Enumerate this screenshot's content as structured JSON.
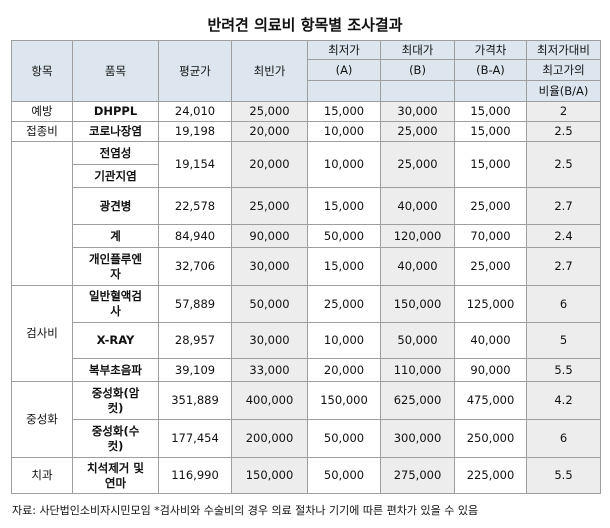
{
  "title": "반려견 의료비 항목별 조사결과",
  "headers": {
    "category": "항목",
    "item": "품목",
    "avg": "평균가",
    "mode": "최빈가",
    "min": "최저가",
    "min_sub": "(A)",
    "max": "최대가",
    "max_sub": "(B)",
    "diff": "가격차",
    "diff_sub": "(B-A)",
    "ratio1": "최저가대비",
    "ratio2": "최고가의",
    "ratio3": "비율(B/A)"
  },
  "categories": {
    "prevention": "예방",
    "vaccination": "접종비",
    "test": "검사비",
    "neutering": "중성화",
    "dental": "치과"
  },
  "rows": [
    {
      "item": "DHPPL",
      "avg": "24,010",
      "mode": "25,000",
      "min": "15,000",
      "max": "30,000",
      "diff": "15,000",
      "ratio": "2"
    },
    {
      "item": "코로나장염",
      "avg": "19,198",
      "mode": "20,000",
      "min": "10,000",
      "max": "25,000",
      "diff": "15,000",
      "ratio": "2.5"
    },
    {
      "item": "전염성 기관지염",
      "item_line1": "전염성",
      "item_line2": "기관지염",
      "avg": "19,154",
      "mode": "20,000",
      "min": "10,000",
      "max": "25,000",
      "diff": "15,000",
      "ratio": "2.5"
    },
    {
      "item": "광견병",
      "avg": "22,578",
      "mode": "25,000",
      "min": "15,000",
      "max": "40,000",
      "diff": "25,000",
      "ratio": "2.7"
    },
    {
      "item": "계",
      "avg": "84,940",
      "mode": "90,000",
      "min": "50,000",
      "max": "120,000",
      "diff": "70,000",
      "ratio": "2.4"
    },
    {
      "item": "개인플루엔자",
      "item_line1": "개인플루엔",
      "item_line2": "자",
      "avg": "32,706",
      "mode": "30,000",
      "min": "15,000",
      "max": "40,000",
      "diff": "25,000",
      "ratio": "2.7"
    },
    {
      "item": "일반혈액검사",
      "item_line1": "일반혈액검",
      "item_line2": "사",
      "avg": "57,889",
      "mode": "50,000",
      "min": "25,000",
      "max": "150,000",
      "diff": "125,000",
      "ratio": "6"
    },
    {
      "item": "X-RAY",
      "avg": "28,957",
      "mode": "30,000",
      "min": "10,000",
      "max": "50,000",
      "diff": "40,000",
      "ratio": "5"
    },
    {
      "item": "복부초음파",
      "avg": "39,109",
      "mode": "33,000",
      "min": "20,000",
      "max": "110,000",
      "diff": "90,000",
      "ratio": "5.5"
    },
    {
      "item": "중성화(암컷)",
      "item_line1": "중성화(암",
      "item_line2": "컷)",
      "avg": "351,889",
      "mode": "400,000",
      "min": "150,000",
      "max": "625,000",
      "diff": "475,000",
      "ratio": "4.2"
    },
    {
      "item": "중성화(수컷)",
      "item_line1": "중성화(수",
      "item_line2": "컷)",
      "avg": "177,454",
      "mode": "200,000",
      "min": "50,000",
      "max": "300,000",
      "diff": "250,000",
      "ratio": "6"
    },
    {
      "item": "치석제거 및 연마",
      "item_line1": "치석제거 및",
      "item_line2": "연마",
      "avg": "116,990",
      "mode": "150,000",
      "min": "50,000",
      "max": "275,000",
      "diff": "225,000",
      "ratio": "5.5"
    }
  ],
  "footnote": "자료: 사단법인소비자시민모임  *검사비와 수술비의 경우 의료 절차나 기기에 따른 편차가 있을 수 있음"
}
